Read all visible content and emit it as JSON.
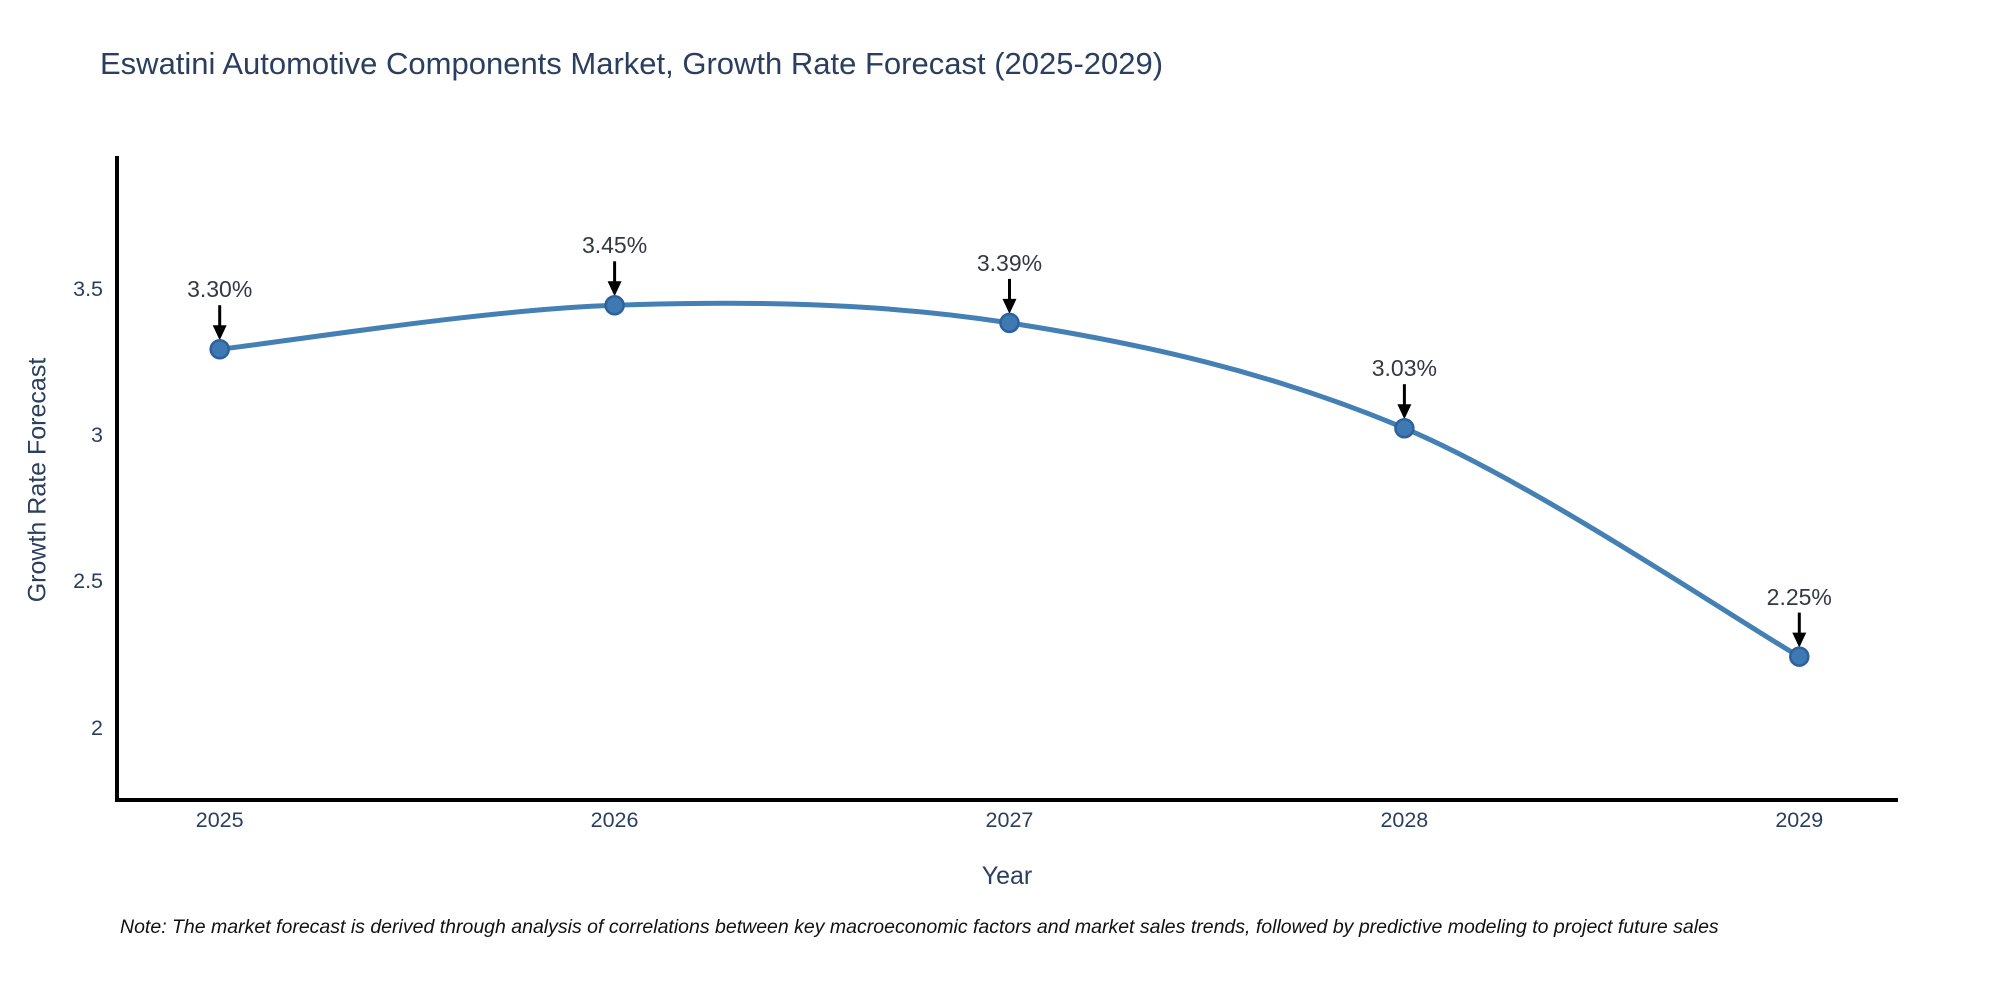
{
  "title": "Eswatini Automotive Components Market, Growth Rate Forecast (2025-2029)",
  "note": "Note: The market forecast is derived through analysis of correlations between key macroeconomic factors and market sales trends, followed by predictive modeling to project future sales",
  "chart_data": {
    "type": "line",
    "title": "Eswatini Automotive Components Market, Growth Rate Forecast (2025-2029)",
    "xlabel": "Year",
    "ylabel": "Growth Rate Forecast",
    "x": [
      2025,
      2026,
      2027,
      2028,
      2029
    ],
    "y": [
      3.3,
      3.45,
      3.39,
      3.03,
      2.25
    ],
    "point_labels": [
      "3.30%",
      "3.45%",
      "3.39%",
      "3.03%",
      "2.25%"
    ],
    "xtick_labels": [
      "2025",
      "2026",
      "2027",
      "2028",
      "2029"
    ],
    "ytick_values": [
      3.5,
      3.0,
      2.5,
      2.0
    ],
    "ytick_labels": [
      "3.5",
      "3",
      "2.5",
      "2"
    ],
    "xlim": [
      2024.74,
      2029.25
    ],
    "ylim": [
      1.76,
      3.96
    ],
    "line_shape": "spline",
    "grid": false,
    "legend": "none",
    "colors": {
      "line": "#4580b4",
      "marker": "#3e79b4",
      "marker_edge": "#2d619b",
      "axis": "#000000",
      "text": "#2a3f5f",
      "annotation": "#333845",
      "arrow": "#000000"
    }
  }
}
